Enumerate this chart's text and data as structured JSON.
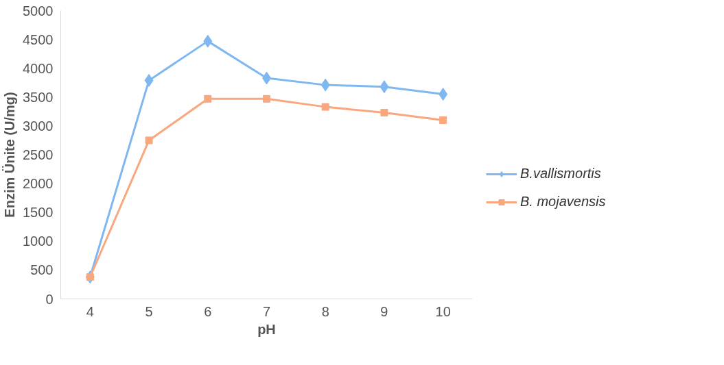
{
  "chart_data": {
    "type": "line",
    "xlabel": "pH",
    "ylabel": "Enzim Ünite (U/mg)",
    "categories": [
      "4",
      "5",
      "6",
      "7",
      "8",
      "9",
      "10"
    ],
    "series": [
      {
        "name": "B.vallismortis",
        "color": "#7fb8f0",
        "marker": "diamond",
        "values": [
          380,
          3790,
          4470,
          3830,
          3710,
          3680,
          3550
        ]
      },
      {
        "name": "B. mojavensis",
        "color": "#f9a77e",
        "marker": "square",
        "values": [
          380,
          2750,
          3470,
          3470,
          3330,
          3230,
          3100
        ]
      }
    ],
    "ylim": [
      0,
      5000
    ],
    "yticks": [
      0,
      500,
      1000,
      1500,
      2000,
      2500,
      3000,
      3500,
      4000,
      4500,
      5000
    ],
    "grid": false,
    "legend": "right"
  }
}
